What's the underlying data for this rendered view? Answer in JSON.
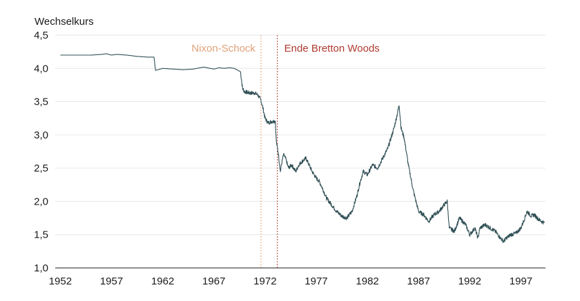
{
  "chart_data": {
    "type": "line",
    "title": "",
    "ylabel": "Wechselkurs",
    "xlabel": "",
    "xlim": [
      1951.5,
      1999.4
    ],
    "ylim": [
      1.0,
      4.5
    ],
    "x_ticks": [
      1952,
      1957,
      1962,
      1967,
      1972,
      1977,
      1982,
      1987,
      1992,
      1997
    ],
    "x_tick_labels": [
      "1952",
      "1957",
      "1962",
      "1967",
      "1972",
      "1977",
      "1982",
      "1987",
      "1992",
      "1997"
    ],
    "y_ticks": [
      1.0,
      1.5,
      2.0,
      2.5,
      3.0,
      3.5,
      4.0,
      4.5
    ],
    "y_tick_labels": [
      "1,0",
      "1,5",
      "2,0",
      "2,5",
      "3,0",
      "3,5",
      "4,0",
      "4,5"
    ],
    "grid": "horizontal",
    "colors": {
      "line": "#2f4f55",
      "nixon": "#e0a27a",
      "bretton": "#b03a2e",
      "grid": "#e6e6e6"
    },
    "annotations": [
      {
        "label": "Nixon-Schock",
        "x": 1971.6,
        "color": "#e0a27a"
      },
      {
        "label": "Ende Bretton Woods",
        "x": 1973.2,
        "color": "#b03a2e"
      }
    ],
    "series": [
      {
        "x": [
          1952.0,
          1953.0,
          1954.0,
          1955.0,
          1956.0,
          1956.5,
          1957.0,
          1957.5,
          1958.5,
          1959.5,
          1960.5,
          1961.0,
          1961.15,
          1961.3,
          1962.0,
          1963.0,
          1964.0,
          1965.0,
          1966.0,
          1967.0,
          1967.5,
          1968.0,
          1968.5,
          1969.0,
          1969.6,
          1969.8,
          1970.0,
          1970.5,
          1971.0,
          1971.3,
          1971.6,
          1971.8,
          1972.0,
          1972.3,
          1972.6,
          1973.0,
          1973.1,
          1973.3,
          1973.5,
          1973.6,
          1973.8,
          1974.0,
          1974.3,
          1974.6,
          1975.0,
          1975.3,
          1975.6,
          1976.0,
          1976.3,
          1976.6,
          1977.0,
          1977.3,
          1977.6,
          1978.0,
          1978.5,
          1979.0,
          1979.5,
          1980.0,
          1980.5,
          1981.0,
          1981.3,
          1981.6,
          1982.0,
          1982.5,
          1983.0,
          1983.5,
          1984.0,
          1984.3,
          1984.6,
          1984.9,
          1985.1,
          1985.3,
          1985.6,
          1986.0,
          1986.5,
          1987.0,
          1987.5,
          1988.0,
          1988.5,
          1989.0,
          1989.5,
          1989.8,
          1990.0,
          1990.5,
          1991.0,
          1991.3,
          1991.6,
          1992.0,
          1992.5,
          1992.8,
          1993.0,
          1993.5,
          1994.0,
          1994.5,
          1995.0,
          1995.3,
          1995.6,
          1996.0,
          1996.5,
          1997.0,
          1997.3,
          1997.6,
          1998.0,
          1998.3,
          1998.6,
          1999.0,
          1999.3
        ],
        "y": [
          4.2,
          4.2,
          4.2,
          4.2,
          4.21,
          4.22,
          4.2,
          4.21,
          4.2,
          4.18,
          4.17,
          4.17,
          4.17,
          3.97,
          4.0,
          3.99,
          3.98,
          3.99,
          4.02,
          3.99,
          4.01,
          4.0,
          4.01,
          4.0,
          3.95,
          3.7,
          3.65,
          3.63,
          3.63,
          3.6,
          3.52,
          3.4,
          3.25,
          3.18,
          3.2,
          3.21,
          2.9,
          2.72,
          2.45,
          2.55,
          2.7,
          2.65,
          2.5,
          2.55,
          2.45,
          2.55,
          2.6,
          2.65,
          2.55,
          2.45,
          2.35,
          2.3,
          2.2,
          2.05,
          1.95,
          1.85,
          1.78,
          1.75,
          1.85,
          2.1,
          2.3,
          2.45,
          2.4,
          2.55,
          2.5,
          2.65,
          2.8,
          2.95,
          3.1,
          3.3,
          3.45,
          3.1,
          2.95,
          2.55,
          2.15,
          1.85,
          1.8,
          1.7,
          1.8,
          1.85,
          1.95,
          2.0,
          1.6,
          1.55,
          1.75,
          1.7,
          1.65,
          1.5,
          1.6,
          1.45,
          1.6,
          1.65,
          1.6,
          1.55,
          1.45,
          1.4,
          1.45,
          1.5,
          1.52,
          1.6,
          1.72,
          1.85,
          1.78,
          1.8,
          1.75,
          1.7,
          1.68
        ]
      }
    ]
  }
}
